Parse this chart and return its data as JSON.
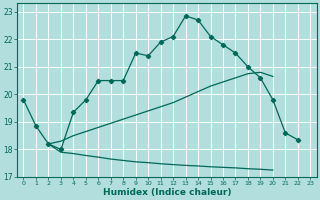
{
  "xlabel": "Humidex (Indice chaleur)",
  "bg_color": "#b2dede",
  "grid_color": "#ffffff",
  "line_color": "#006858",
  "xlim": [
    -0.5,
    23.5
  ],
  "ylim": [
    17.0,
    23.3
  ],
  "yticks": [
    17,
    18,
    19,
    20,
    21,
    22,
    23
  ],
  "xticks": [
    0,
    1,
    2,
    3,
    4,
    5,
    6,
    7,
    8,
    9,
    10,
    11,
    12,
    13,
    14,
    15,
    16,
    17,
    18,
    19,
    20,
    21,
    22,
    23
  ],
  "line1_x": [
    0,
    1,
    2,
    3,
    4,
    5,
    6,
    7,
    8,
    9,
    10,
    11,
    12,
    13,
    14,
    15,
    16,
    17,
    18,
    19,
    20,
    21,
    22
  ],
  "line1_y": [
    19.8,
    18.85,
    18.2,
    18.0,
    19.35,
    19.8,
    20.5,
    20.5,
    20.5,
    21.5,
    21.4,
    21.9,
    22.1,
    22.85,
    22.7,
    22.1,
    21.8,
    21.5,
    21.0,
    20.6,
    19.8,
    18.6,
    18.35
  ],
  "line2_x": [
    2,
    3,
    4,
    5,
    6,
    7,
    8,
    9,
    10,
    11,
    12,
    13,
    14,
    15,
    16,
    17,
    18,
    19,
    20
  ],
  "line2_y": [
    18.2,
    18.3,
    18.5,
    18.65,
    18.8,
    18.95,
    19.1,
    19.25,
    19.4,
    19.55,
    19.7,
    19.9,
    20.1,
    20.3,
    20.45,
    20.6,
    20.75,
    20.8,
    20.65
  ],
  "line3_x": [
    2,
    3,
    4,
    5,
    6,
    7,
    8,
    9,
    10,
    11,
    12,
    13,
    14,
    15,
    16,
    17,
    18,
    19,
    20
  ],
  "line3_y": [
    18.2,
    17.9,
    17.85,
    17.78,
    17.72,
    17.65,
    17.6,
    17.55,
    17.52,
    17.48,
    17.45,
    17.42,
    17.4,
    17.37,
    17.35,
    17.33,
    17.3,
    17.28,
    17.25
  ]
}
